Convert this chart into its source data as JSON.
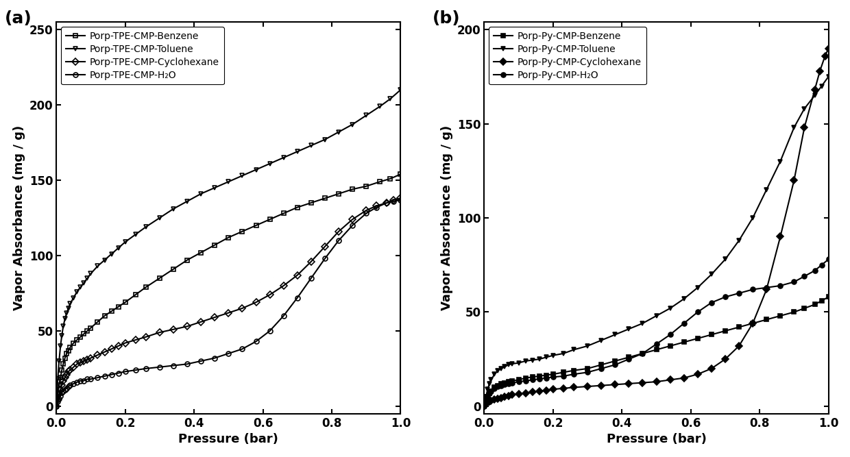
{
  "panel_a": {
    "xlabel": "Pressure (bar)",
    "ylabel": "Vapor Absorbance (mg / g)",
    "xlim": [
      0.0,
      1.0
    ],
    "ylim": [
      -5,
      255
    ],
    "yticks": [
      0,
      50,
      100,
      150,
      200,
      250
    ],
    "xticks": [
      0.0,
      0.2,
      0.4,
      0.6,
      0.8,
      1.0
    ],
    "series": [
      {
        "label": "Porp-TPE-CMP-Benzene",
        "marker": "s",
        "fillstyle": "none",
        "color": "black",
        "pressure": [
          0.0,
          0.004,
          0.008,
          0.012,
          0.016,
          0.02,
          0.025,
          0.03,
          0.035,
          0.04,
          0.05,
          0.06,
          0.07,
          0.08,
          0.09,
          0.1,
          0.12,
          0.14,
          0.16,
          0.18,
          0.2,
          0.23,
          0.26,
          0.3,
          0.34,
          0.38,
          0.42,
          0.46,
          0.5,
          0.54,
          0.58,
          0.62,
          0.66,
          0.7,
          0.74,
          0.78,
          0.82,
          0.86,
          0.9,
          0.94,
          0.97,
          1.0
        ],
        "absorbance": [
          0,
          8,
          14,
          19,
          24,
          28,
          32,
          35,
          37,
          39,
          42,
          44,
          46,
          48,
          50,
          52,
          56,
          60,
          63,
          66,
          69,
          74,
          79,
          85,
          91,
          97,
          102,
          107,
          112,
          116,
          120,
          124,
          128,
          132,
          135,
          138,
          141,
          144,
          146,
          149,
          151,
          154
        ]
      },
      {
        "label": "Porp-TPE-CMP-Toluene",
        "marker": "v",
        "fillstyle": "none",
        "color": "black",
        "pressure": [
          0.0,
          0.004,
          0.008,
          0.012,
          0.016,
          0.02,
          0.025,
          0.03,
          0.035,
          0.04,
          0.05,
          0.06,
          0.07,
          0.08,
          0.09,
          0.1,
          0.12,
          0.14,
          0.16,
          0.18,
          0.2,
          0.23,
          0.26,
          0.3,
          0.34,
          0.38,
          0.42,
          0.46,
          0.5,
          0.54,
          0.58,
          0.62,
          0.66,
          0.7,
          0.74,
          0.78,
          0.82,
          0.86,
          0.9,
          0.94,
          0.97,
          1.0
        ],
        "absorbance": [
          0,
          18,
          30,
          40,
          47,
          53,
          58,
          62,
          65,
          68,
          72,
          76,
          79,
          82,
          85,
          88,
          93,
          97,
          101,
          105,
          109,
          114,
          119,
          125,
          131,
          136,
          141,
          145,
          149,
          153,
          157,
          161,
          165,
          169,
          173,
          177,
          182,
          187,
          193,
          199,
          204,
          210
        ]
      },
      {
        "label": "Porp-TPE-CMP-Cyclohexane",
        "marker": "D",
        "fillstyle": "none",
        "color": "black",
        "pressure": [
          0.0,
          0.004,
          0.008,
          0.012,
          0.016,
          0.02,
          0.025,
          0.03,
          0.035,
          0.04,
          0.05,
          0.06,
          0.07,
          0.08,
          0.09,
          0.1,
          0.12,
          0.14,
          0.16,
          0.18,
          0.2,
          0.23,
          0.26,
          0.3,
          0.34,
          0.38,
          0.42,
          0.46,
          0.5,
          0.54,
          0.58,
          0.62,
          0.66,
          0.7,
          0.74,
          0.78,
          0.82,
          0.86,
          0.9,
          0.93,
          0.96,
          0.98,
          1.0
        ],
        "absorbance": [
          0,
          4,
          8,
          11,
          14,
          17,
          19,
          21,
          23,
          24,
          26,
          28,
          29,
          30,
          31,
          32,
          34,
          36,
          38,
          40,
          42,
          44,
          46,
          49,
          51,
          53,
          56,
          59,
          62,
          65,
          69,
          74,
          80,
          87,
          96,
          106,
          116,
          124,
          130,
          133,
          135,
          137,
          138
        ]
      },
      {
        "label": "Porp-TPE-CMP-H₂O",
        "marker": "o",
        "fillstyle": "none",
        "color": "black",
        "pressure": [
          0.0,
          0.004,
          0.008,
          0.012,
          0.016,
          0.02,
          0.025,
          0.03,
          0.035,
          0.04,
          0.05,
          0.06,
          0.07,
          0.08,
          0.09,
          0.1,
          0.12,
          0.14,
          0.16,
          0.18,
          0.2,
          0.23,
          0.26,
          0.3,
          0.34,
          0.38,
          0.42,
          0.46,
          0.5,
          0.54,
          0.58,
          0.62,
          0.66,
          0.7,
          0.74,
          0.78,
          0.82,
          0.86,
          0.9,
          0.93,
          0.96,
          0.98,
          1.0
        ],
        "absorbance": [
          0,
          3,
          5,
          7,
          9,
          10,
          11,
          12,
          13,
          14,
          15,
          16,
          17,
          17,
          18,
          18,
          19,
          20,
          21,
          22,
          23,
          24,
          25,
          26,
          27,
          28,
          30,
          32,
          35,
          38,
          43,
          50,
          60,
          72,
          85,
          98,
          110,
          120,
          128,
          132,
          135,
          136,
          137
        ]
      }
    ]
  },
  "panel_b": {
    "xlabel": "Pressure (bar)",
    "ylabel": "Vapor Absorbance (mg / g)",
    "xlim": [
      0.0,
      1.0
    ],
    "ylim": [
      -4,
      204
    ],
    "yticks": [
      0,
      50,
      100,
      150,
      200
    ],
    "xticks": [
      0.0,
      0.2,
      0.4,
      0.6,
      0.8,
      1.0
    ],
    "series": [
      {
        "label": "Porp-Py-CMP-Benzene",
        "marker": "s",
        "fillstyle": "full",
        "color": "black",
        "pressure": [
          0.0,
          0.005,
          0.01,
          0.015,
          0.02,
          0.03,
          0.04,
          0.05,
          0.06,
          0.07,
          0.08,
          0.1,
          0.12,
          0.14,
          0.16,
          0.18,
          0.2,
          0.23,
          0.26,
          0.3,
          0.34,
          0.38,
          0.42,
          0.46,
          0.5,
          0.54,
          0.58,
          0.62,
          0.66,
          0.7,
          0.74,
          0.78,
          0.82,
          0.86,
          0.9,
          0.93,
          0.96,
          0.98,
          1.0
        ],
        "absorbance": [
          0,
          3,
          5,
          7,
          8,
          10,
          11,
          12,
          12.5,
          13,
          13.5,
          14,
          15,
          15.5,
          16,
          16.5,
          17,
          18,
          19,
          20,
          22,
          24,
          26,
          28,
          30,
          32,
          34,
          36,
          38,
          40,
          42,
          44,
          46,
          48,
          50,
          52,
          54,
          56,
          58
        ]
      },
      {
        "label": "Porp-Py-CMP-Toluene",
        "marker": "v",
        "fillstyle": "full",
        "color": "black",
        "pressure": [
          0.0,
          0.005,
          0.01,
          0.015,
          0.02,
          0.03,
          0.04,
          0.05,
          0.06,
          0.07,
          0.08,
          0.1,
          0.12,
          0.14,
          0.16,
          0.18,
          0.2,
          0.23,
          0.26,
          0.3,
          0.34,
          0.38,
          0.42,
          0.46,
          0.5,
          0.54,
          0.58,
          0.62,
          0.66,
          0.7,
          0.74,
          0.78,
          0.82,
          0.86,
          0.9,
          0.93,
          0.96,
          0.98,
          1.0
        ],
        "absorbance": [
          0,
          5,
          9,
          12,
          14,
          17,
          19,
          20,
          21,
          22,
          22.5,
          23,
          24,
          24.5,
          25,
          26,
          27,
          28,
          30,
          32,
          35,
          38,
          41,
          44,
          48,
          52,
          57,
          63,
          70,
          78,
          88,
          100,
          115,
          130,
          148,
          158,
          165,
          170,
          175
        ]
      },
      {
        "label": "Porp-Py-CMP-Cyclohexane",
        "marker": "D",
        "fillstyle": "full",
        "color": "black",
        "pressure": [
          0.0,
          0.005,
          0.01,
          0.015,
          0.02,
          0.03,
          0.04,
          0.05,
          0.06,
          0.07,
          0.08,
          0.1,
          0.12,
          0.14,
          0.16,
          0.18,
          0.2,
          0.23,
          0.26,
          0.3,
          0.34,
          0.38,
          0.42,
          0.46,
          0.5,
          0.54,
          0.58,
          0.62,
          0.66,
          0.7,
          0.74,
          0.78,
          0.82,
          0.86,
          0.9,
          0.93,
          0.96,
          0.975,
          0.99,
          1.0
        ],
        "absorbance": [
          0,
          1,
          2,
          2.5,
          3,
          3.5,
          4,
          4.5,
          5,
          5.5,
          6,
          6.5,
          7,
          7.5,
          8,
          8.5,
          9,
          9.5,
          10,
          10.5,
          11,
          11.5,
          12,
          12.5,
          13,
          14,
          15,
          17,
          20,
          25,
          32,
          44,
          62,
          90,
          120,
          148,
          168,
          178,
          186,
          190
        ]
      },
      {
        "label": "Porp-Py-CMP-H₂O",
        "marker": "o",
        "fillstyle": "full",
        "color": "black",
        "pressure": [
          0.0,
          0.005,
          0.01,
          0.015,
          0.02,
          0.03,
          0.04,
          0.05,
          0.06,
          0.07,
          0.08,
          0.1,
          0.12,
          0.14,
          0.16,
          0.18,
          0.2,
          0.23,
          0.26,
          0.3,
          0.34,
          0.38,
          0.42,
          0.46,
          0.5,
          0.54,
          0.58,
          0.62,
          0.66,
          0.7,
          0.74,
          0.78,
          0.82,
          0.86,
          0.9,
          0.93,
          0.96,
          0.98,
          1.0
        ],
        "absorbance": [
          0,
          3,
          5,
          7,
          8,
          9.5,
          10.5,
          11,
          11.5,
          12,
          12.5,
          13,
          13.5,
          14,
          14.5,
          15,
          15.5,
          16,
          17,
          18,
          20,
          22,
          25,
          28,
          33,
          38,
          44,
          50,
          55,
          58,
          60,
          62,
          63,
          64,
          66,
          69,
          72,
          75,
          78
        ]
      }
    ]
  },
  "panel_label_fontsize": 18,
  "axis_label_fontsize": 13,
  "tick_fontsize": 12,
  "legend_fontsize": 10,
  "linewidth": 1.5,
  "markersize": 5,
  "markeredgewidth": 1.2
}
